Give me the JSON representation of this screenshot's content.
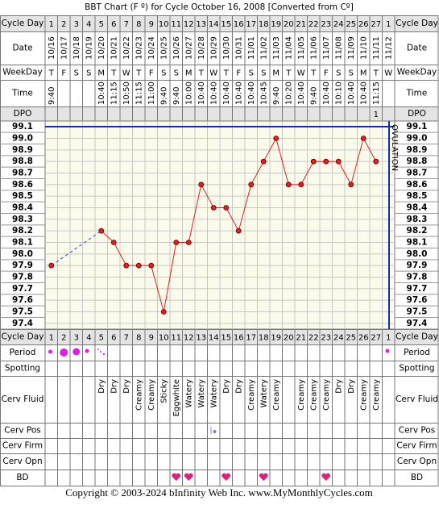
{
  "chart_data": {
    "type": "line",
    "title": "BBT Chart (F º) for Cycle October 16, 2008  [Converted from Cº]",
    "categories": [
      "10/16",
      "10/17",
      "10/18",
      "10/19",
      "10/20",
      "10/21",
      "10/22",
      "10/23",
      "10/24",
      "10/25",
      "10/26",
      "10/27",
      "10/28",
      "10/29",
      "10/30",
      "10/31",
      "11/01",
      "11/02",
      "11/03",
      "11/04",
      "11/05",
      "11/06",
      "11/07",
      "11/08",
      "11/09",
      "11/10",
      "11/11",
      "11/12"
    ],
    "values": [
      97.9,
      null,
      null,
      null,
      98.2,
      98.1,
      97.9,
      97.9,
      97.9,
      97.5,
      98.1,
      98.1,
      98.6,
      98.4,
      98.4,
      98.2,
      98.6,
      98.8,
      99.0,
      98.6,
      98.6,
      98.8,
      98.8,
      98.8,
      98.6,
      99.0,
      98.8,
      null
    ],
    "color": "#e02020",
    "ylim": [
      97.35,
      99.15
    ],
    "yticks": [
      {
        "value": 99.1,
        "label": "99.1"
      },
      {
        "value": 99,
        "label": "99.0"
      },
      98.9,
      98.8,
      98.7,
      98.6,
      98.5,
      98.4,
      98.3,
      98.2,
      98.1,
      {
        "value": 98,
        "label": "98.0"
      },
      97.9,
      97.8,
      97.7,
      97.6,
      97.5,
      97.4
    ],
    "grid": true,
    "annotation": "OVULATION"
  },
  "labels": {
    "cycle_day": "Cycle Day",
    "date": "Date",
    "weekday": "WeekDay",
    "time": "Time",
    "dpo": "DPO",
    "period": "Period",
    "spotting": "Spotting",
    "cerv_fluid": "Cerv Fluid",
    "cerv_pos": "Cerv Pos",
    "cerv_firm": "Cerv Firm",
    "cerv_opn": "Cerv Opn",
    "bd": "BD"
  },
  "cycle_days": [
    1,
    2,
    3,
    4,
    5,
    6,
    7,
    8,
    9,
    10,
    11,
    12,
    13,
    14,
    15,
    16,
    17,
    18,
    19,
    20,
    21,
    22,
    23,
    24,
    25,
    26,
    27,
    1
  ],
  "weekdays": [
    "T",
    "F",
    "S",
    "S",
    "M",
    "T",
    "W",
    "T",
    "F",
    "S",
    "S",
    "M",
    "T",
    "W",
    "T",
    "F",
    "S",
    "S",
    "M",
    "T",
    "W",
    "T",
    "F",
    "S",
    "S",
    "M",
    "T",
    "W"
  ],
  "times": [
    "9:40",
    null,
    null,
    null,
    "10:40",
    "11:15",
    "10:50",
    "11:15",
    "11:00",
    "9:40",
    "9:40",
    "10:00",
    "10:40",
    "10:40",
    "10:40",
    "10:40",
    "10:40",
    "10:45",
    "9:40",
    "10:20",
    "10:40",
    "9:40",
    "10:40",
    "10:10",
    "10:40",
    "10:40",
    "11:15",
    null
  ],
  "dpo": [
    null,
    null,
    null,
    null,
    null,
    null,
    null,
    null,
    null,
    null,
    null,
    null,
    null,
    null,
    null,
    null,
    null,
    null,
    null,
    null,
    null,
    null,
    null,
    null,
    null,
    null,
    1,
    null
  ],
  "cerv_fluid": [
    null,
    null,
    null,
    null,
    "Dry",
    "Dry",
    "Dry",
    "Creamy",
    "Creamy",
    "Sticky",
    "Eggwhite",
    "Watery",
    "Watery",
    "Watery",
    "Dry",
    "Dry",
    "Creamy",
    "Watery",
    "Creamy",
    null,
    "Creamy",
    "Creamy",
    "Creamy",
    "Dry",
    "Dry",
    "Creamy",
    "Creamy",
    null
  ],
  "footer": "Copyright © 2003-2024 bInfinity Web Inc.     www.MyMonthlyCycles.com"
}
